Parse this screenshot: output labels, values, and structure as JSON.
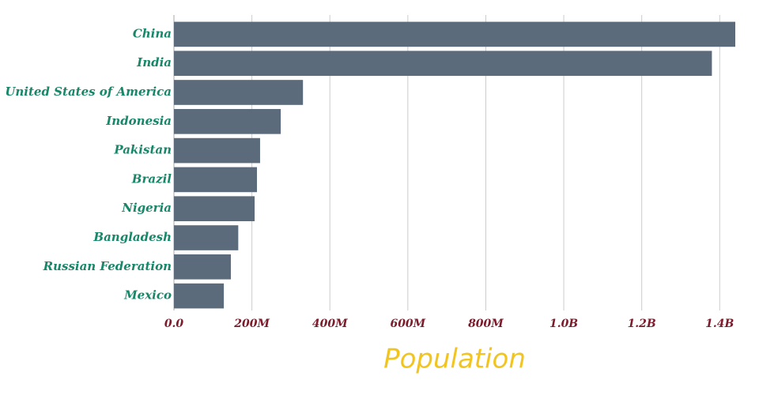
{
  "chart_data": {
    "type": "bar",
    "orientation": "horizontal",
    "x_label": "Population",
    "categories": [
      "China",
      "India",
      "United States of America",
      "Indonesia",
      "Pakistan",
      "Brazil",
      "Nigeria",
      "Bangladesh",
      "Russian Federation",
      "Mexico"
    ],
    "values": [
      1440000000,
      1380000000,
      331000000,
      274000000,
      221000000,
      213000000,
      207000000,
      165000000,
      146000000,
      128000000
    ],
    "color": "#5c6b7c",
    "xlim": [
      0,
      1440000000
    ],
    "xticks": [
      {
        "value": 0,
        "label": "0.0"
      },
      {
        "value": 200000000,
        "label": "200M"
      },
      {
        "value": 400000000,
        "label": "400M"
      },
      {
        "value": 600000000,
        "label": "600M"
      },
      {
        "value": 800000000,
        "label": "800M"
      },
      {
        "value": 1000000000,
        "label": "1.0B"
      },
      {
        "value": 1200000000,
        "label": "1.2B"
      },
      {
        "value": 1400000000,
        "label": "1.4B"
      }
    ],
    "grid": true
  }
}
